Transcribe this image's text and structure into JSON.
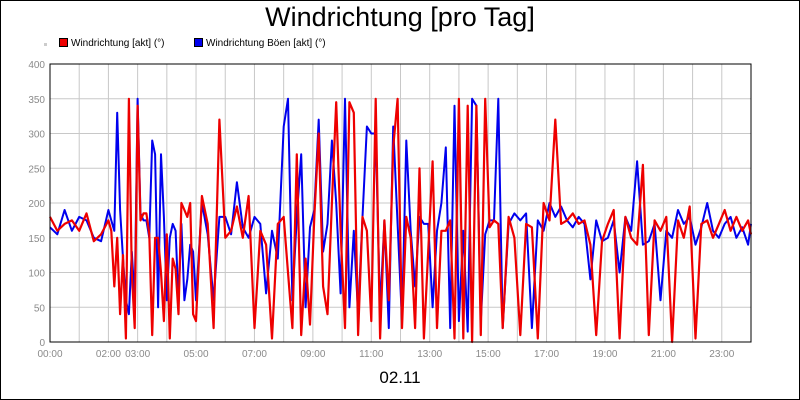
{
  "chart_data": {
    "type": "line",
    "title": "Windrichtung [pro Tag]",
    "xlabel": "02.11",
    "ylabel": "",
    "ylim": [
      0,
      400
    ],
    "yticks": [
      0,
      50,
      100,
      150,
      200,
      250,
      300,
      350,
      400
    ],
    "xlim": [
      0,
      24
    ],
    "xticks": [
      {
        "x": 0,
        "label": "00:00"
      },
      {
        "x": 2,
        "label": "02:00"
      },
      {
        "x": 3,
        "label": "03:00"
      },
      {
        "x": 5,
        "label": "05:00"
      },
      {
        "x": 7,
        "label": "07:00"
      },
      {
        "x": 9,
        "label": "09:00"
      },
      {
        "x": 11,
        "label": "11:00"
      },
      {
        "x": 13,
        "label": "13:00"
      },
      {
        "x": 15,
        "label": "15:00"
      },
      {
        "x": 17,
        "label": "17:00"
      },
      {
        "x": 19,
        "label": "19:00"
      },
      {
        "x": 21,
        "label": "21:00"
      },
      {
        "x": 23,
        "label": "23:00"
      }
    ],
    "grid": true,
    "legend_position": "top-left",
    "series": [
      {
        "name": "Windrichtung Böen [akt] (°)",
        "color": "#0000ee",
        "x": [
          0,
          0.25,
          0.5,
          0.75,
          1,
          1.25,
          1.5,
          1.75,
          2,
          2.1,
          2.2,
          2.3,
          2.4,
          2.5,
          2.6,
          2.7,
          2.8,
          2.9,
          3,
          3.1,
          3.2,
          3.3,
          3.4,
          3.5,
          3.6,
          3.7,
          3.8,
          3.9,
          4,
          4.1,
          4.2,
          4.3,
          4.4,
          4.5,
          4.6,
          4.7,
          4.8,
          4.9,
          5,
          5.2,
          5.4,
          5.6,
          5.8,
          6,
          6.2,
          6.4,
          6.6,
          6.8,
          7,
          7.2,
          7.4,
          7.6,
          7.8,
          8,
          8.15,
          8.3,
          8.45,
          8.6,
          8.75,
          8.9,
          9.05,
          9.2,
          9.35,
          9.5,
          9.65,
          9.8,
          9.95,
          10.1,
          10.25,
          10.4,
          10.55,
          10.7,
          10.85,
          11,
          11.15,
          11.3,
          11.45,
          11.6,
          11.75,
          11.9,
          12.05,
          12.2,
          12.35,
          12.5,
          12.65,
          12.8,
          12.95,
          13.1,
          13.25,
          13.4,
          13.55,
          13.7,
          13.85,
          14,
          14.15,
          14.3,
          14.45,
          14.6,
          14.75,
          14.9,
          15.05,
          15.2,
          15.35,
          15.5,
          15.7,
          15.9,
          16.1,
          16.3,
          16.5,
          16.7,
          16.9,
          17.1,
          17.3,
          17.5,
          17.7,
          17.9,
          18.1,
          18.3,
          18.5,
          18.7,
          18.9,
          19.1,
          19.3,
          19.5,
          19.7,
          19.9,
          20.1,
          20.3,
          20.5,
          20.7,
          20.9,
          21.1,
          21.3,
          21.5,
          21.7,
          21.9,
          22.1,
          22.3,
          22.5,
          22.7,
          22.9,
          23.1,
          23.3,
          23.5,
          23.7,
          23.9,
          24
        ],
        "y": [
          165,
          155,
          190,
          160,
          180,
          175,
          150,
          145,
          190,
          175,
          160,
          330,
          190,
          120,
          60,
          40,
          130,
          60,
          350,
          185,
          175,
          175,
          150,
          290,
          270,
          50,
          270,
          180,
          60,
          150,
          170,
          160,
          60,
          170,
          60,
          90,
          140,
          130,
          60,
          200,
          155,
          60,
          180,
          180,
          155,
          230,
          165,
          150,
          180,
          170,
          70,
          160,
          120,
          310,
          350,
          60,
          180,
          270,
          50,
          165,
          190,
          320,
          130,
          170,
          290,
          200,
          70,
          350,
          50,
          160,
          40,
          180,
          310,
          300,
          300,
          45,
          175,
          20,
          310,
          170,
          30,
          290,
          160,
          80,
          180,
          170,
          170,
          50,
          160,
          200,
          280,
          20,
          340,
          30,
          160,
          15,
          350,
          340,
          30,
          155,
          175,
          175,
          350,
          20,
          170,
          185,
          175,
          185,
          20,
          175,
          160,
          200,
          180,
          195,
          175,
          165,
          180,
          170,
          90,
          175,
          145,
          150,
          175,
          100,
          180,
          160,
          260,
          140,
          145,
          170,
          60,
          160,
          150,
          190,
          170,
          180,
          140,
          165,
          200,
          160,
          150,
          170,
          180,
          150,
          165,
          140,
          170
        ],
        "_sampled": true
      },
      {
        "name": "Windrichtung [akt] (°)",
        "color": "#ee0000",
        "x": [
          0,
          0.25,
          0.5,
          0.75,
          1,
          1.25,
          1.5,
          1.75,
          2,
          2.1,
          2.2,
          2.3,
          2.4,
          2.5,
          2.6,
          2.7,
          2.8,
          2.9,
          3,
          3.1,
          3.2,
          3.3,
          3.4,
          3.5,
          3.6,
          3.7,
          3.8,
          3.9,
          4,
          4.1,
          4.2,
          4.3,
          4.4,
          4.5,
          4.6,
          4.7,
          4.8,
          4.9,
          5,
          5.2,
          5.4,
          5.6,
          5.8,
          6,
          6.2,
          6.4,
          6.6,
          6.8,
          7,
          7.2,
          7.4,
          7.6,
          7.8,
          8,
          8.15,
          8.3,
          8.45,
          8.6,
          8.75,
          8.9,
          9.05,
          9.2,
          9.35,
          9.5,
          9.65,
          9.8,
          9.95,
          10.1,
          10.25,
          10.4,
          10.55,
          10.7,
          10.85,
          11,
          11.15,
          11.3,
          11.45,
          11.6,
          11.75,
          11.9,
          12.05,
          12.2,
          12.35,
          12.5,
          12.65,
          12.8,
          12.95,
          13.1,
          13.25,
          13.4,
          13.55,
          13.7,
          13.85,
          14,
          14.15,
          14.3,
          14.45,
          14.6,
          14.75,
          14.9,
          15.05,
          15.2,
          15.35,
          15.5,
          15.7,
          15.9,
          16.1,
          16.3,
          16.5,
          16.7,
          16.9,
          17.1,
          17.3,
          17.5,
          17.7,
          17.9,
          18.1,
          18.3,
          18.5,
          18.7,
          18.9,
          19.1,
          19.3,
          19.5,
          19.7,
          19.9,
          20.1,
          20.3,
          20.5,
          20.7,
          20.9,
          21.1,
          21.3,
          21.5,
          21.7,
          21.9,
          22.1,
          22.3,
          22.5,
          22.7,
          22.9,
          23.1,
          23.3,
          23.5,
          23.7,
          23.9,
          24
        ],
        "y": [
          180,
          160,
          170,
          175,
          160,
          185,
          145,
          155,
          175,
          160,
          80,
          150,
          40,
          125,
          5,
          350,
          100,
          20,
          340,
          175,
          185,
          185,
          155,
          10,
          150,
          150,
          100,
          30,
          155,
          5,
          120,
          105,
          40,
          200,
          190,
          180,
          200,
          40,
          30,
          210,
          170,
          20,
          320,
          150,
          160,
          195,
          150,
          210,
          20,
          160,
          140,
          5,
          170,
          180,
          100,
          20,
          270,
          10,
          120,
          25,
          180,
          300,
          80,
          40,
          200,
          345,
          160,
          20,
          345,
          330,
          10,
          180,
          160,
          30,
          350,
          5,
          175,
          60,
          280,
          350,
          20,
          180,
          150,
          20,
          250,
          5,
          130,
          260,
          20,
          160,
          160,
          175,
          5,
          350,
          5,
          340,
          0,
          340,
          10,
          350,
          165,
          175,
          170,
          20,
          180,
          150,
          10,
          170,
          165,
          5,
          200,
          175,
          320,
          170,
          175,
          185,
          170,
          175,
          140,
          10,
          145,
          170,
          190,
          5,
          180,
          150,
          140,
          255,
          10,
          175,
          160,
          180,
          0,
          175,
          150,
          195,
          5,
          170,
          175,
          150,
          170,
          190,
          160,
          180,
          160,
          175,
          155
        ],
        "_sampled": true
      }
    ]
  }
}
